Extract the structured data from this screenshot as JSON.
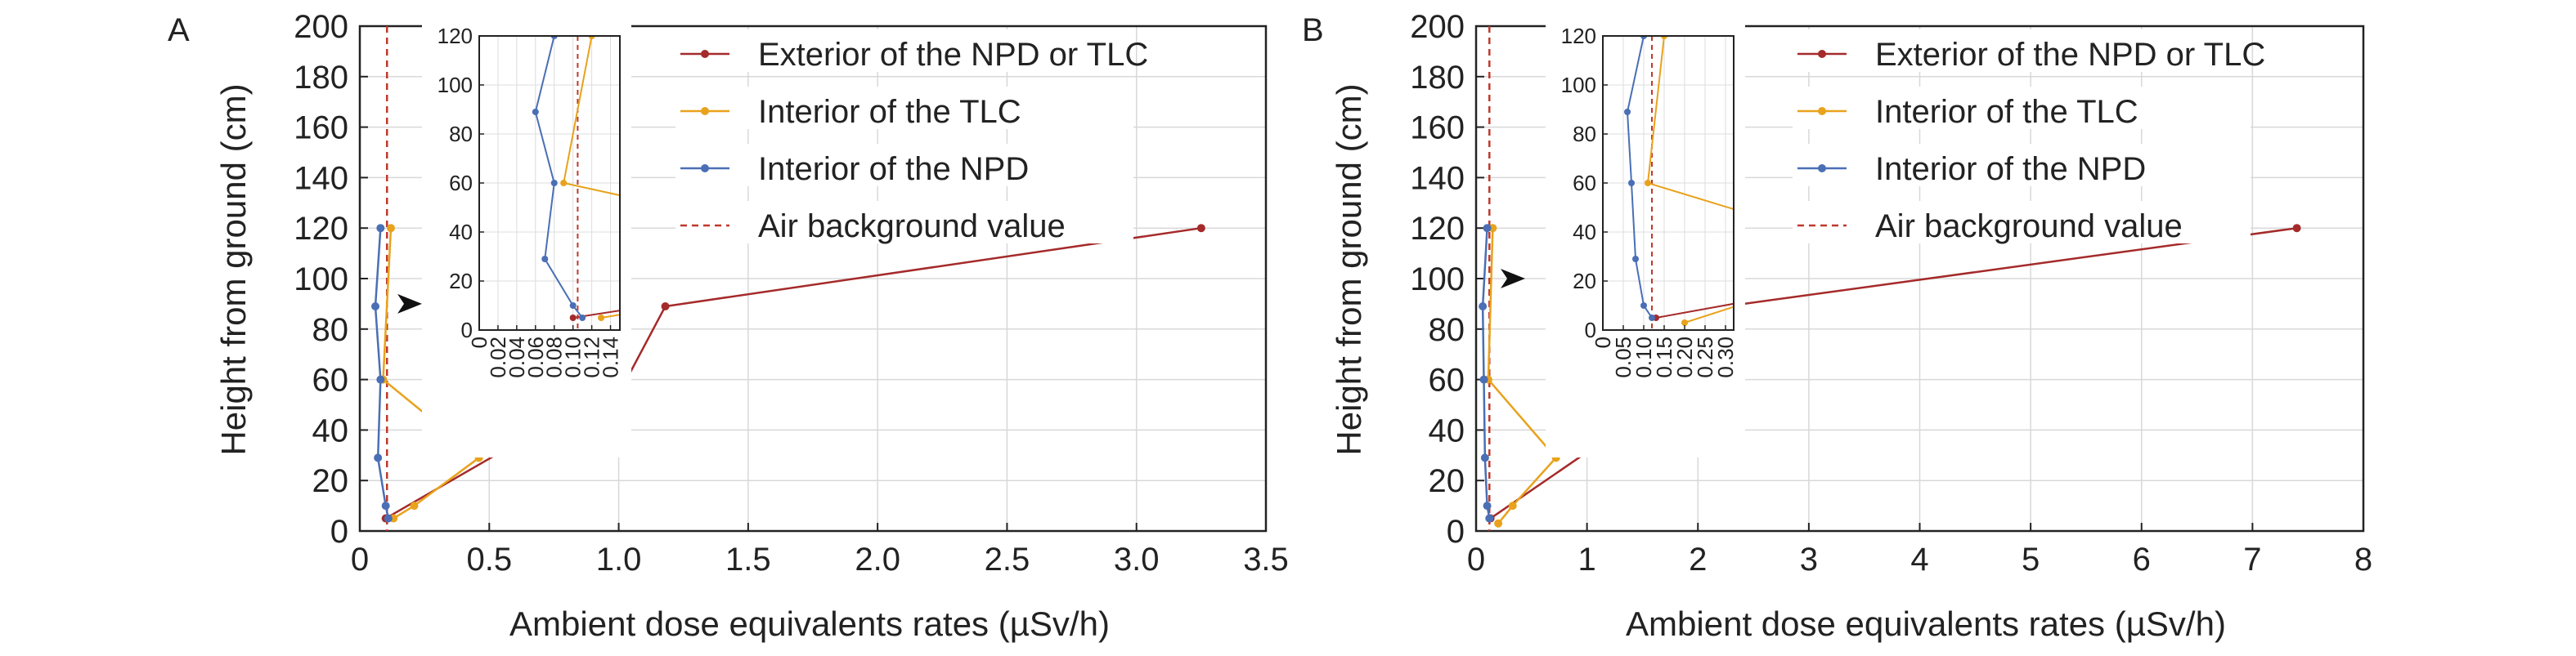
{
  "chart_data": [
    {
      "type": "line",
      "panel_label": "A",
      "xlabel": "Ambient dose equivalents rates (µSv/h)",
      "ylabel": "Height from ground (cm)",
      "xlim": [
        0,
        3.5
      ],
      "ylim": [
        0,
        200
      ],
      "xticks": [
        0,
        0.5,
        1.0,
        1.5,
        2.0,
        2.5,
        3.0,
        3.5
      ],
      "xtick_labels": [
        "0",
        "0.5",
        "1.0",
        "1.5",
        "2.0",
        "2.5",
        "3.0",
        "3.5"
      ],
      "yticks": [
        0,
        20,
        40,
        60,
        80,
        100,
        120,
        140,
        160,
        180,
        200
      ],
      "grid": true,
      "legend_position": "top-right",
      "series": [
        {
          "name": "Exterior of the NPD or TLC",
          "color": "#a52a2a",
          "x": [
            0.1,
            1.03,
            1.18,
            3.25
          ],
          "y": [
            5,
            60,
            89,
            120
          ]
        },
        {
          "name": "Interior of the TLC",
          "color": "#e8a21c",
          "x": [
            0.13,
            0.21,
            0.46,
            0.09,
            0.12
          ],
          "y": [
            5,
            10,
            29,
            60,
            120
          ]
        },
        {
          "name": "Interior of the NPD",
          "color": "#4a6fb5",
          "x": [
            0.11,
            0.1,
            0.07,
            0.08,
            0.06,
            0.08
          ],
          "y": [
            5,
            10,
            29,
            60,
            89,
            120
          ]
        }
      ],
      "reference_line": {
        "name": "Air background value",
        "color": "#c0392b",
        "x": 0.105
      },
      "inset": {
        "xlim": [
          0,
          0.15
        ],
        "ylim": [
          0,
          120
        ],
        "xticks": [
          0,
          0.02,
          0.04,
          0.06,
          0.08,
          0.1,
          0.12,
          0.14
        ],
        "xtick_labels": [
          "0",
          "0.02",
          "0.04",
          "0.06",
          "0.08",
          "0.10",
          "0.12",
          "0.14"
        ],
        "yticks": [
          0,
          20,
          40,
          60,
          80,
          100,
          120
        ],
        "arrow_y": 90
      }
    },
    {
      "type": "line",
      "panel_label": "B",
      "xlabel": "Ambient dose equivalents rates  (µSv/h)",
      "ylabel": "Height from ground (cm)",
      "xlim": [
        0,
        8
      ],
      "ylim": [
        0,
        200
      ],
      "xticks": [
        0,
        1,
        2,
        3,
        4,
        5,
        6,
        7,
        8
      ],
      "xtick_labels": [
        "0",
        "1",
        "2",
        "3",
        "4",
        "5",
        "6",
        "7",
        "8"
      ],
      "yticks": [
        0,
        20,
        40,
        60,
        80,
        100,
        120,
        140,
        160,
        180,
        200
      ],
      "grid": true,
      "legend_position": "top-right",
      "series": [
        {
          "name": "Exterior of the NPD or TLC",
          "color": "#a52a2a",
          "x": [
            0.13,
            1.92,
            2.25,
            7.4
          ],
          "y": [
            5,
            59,
            89,
            120
          ]
        },
        {
          "name": "Interior of the TLC",
          "color": "#e8a21c",
          "x": [
            0.2,
            0.33,
            0.72,
            0.11,
            0.15
          ],
          "y": [
            3,
            10,
            29,
            60,
            120
          ]
        },
        {
          "name": "Interior of the NPD",
          "color": "#4a6fb5",
          "x": [
            0.12,
            0.1,
            0.08,
            0.07,
            0.06,
            0.1
          ],
          "y": [
            5,
            10,
            29,
            60,
            89,
            120
          ]
        }
      ],
      "reference_line": {
        "name": "Air background value",
        "color": "#c0392b",
        "x": 0.12
      },
      "inset": {
        "xlim": [
          0,
          0.32
        ],
        "ylim": [
          0,
          120
        ],
        "xticks": [
          0,
          0.05,
          0.1,
          0.15,
          0.2,
          0.25,
          0.3
        ],
        "xtick_labels": [
          "0",
          "0.05",
          "0.10",
          "0.15",
          "0.20",
          "0.25",
          "0.30"
        ],
        "yticks": [
          0,
          20,
          40,
          60,
          80,
          100,
          120
        ],
        "arrow_y": 100
      }
    }
  ]
}
